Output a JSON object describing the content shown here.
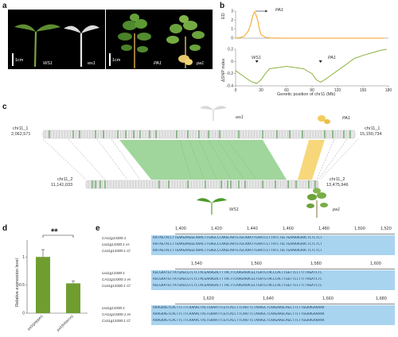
{
  "panels": {
    "a": {
      "letter": "a",
      "scale_label_left": "1cm",
      "scale_label_right": "1cm",
      "captions": [
        "WS1",
        "ws1",
        "PA1",
        "pa1"
      ]
    },
    "b": {
      "letter": "b",
      "top_ylabel": "ED",
      "bottom_ylabel": "ΔSNP index",
      "xlabel": "Genetic position of chr11 (Mb)",
      "top_marker_label": "PA1",
      "bottom_marker_left": "WS1",
      "bottom_marker_right": "PA1",
      "x_ticks": [
        "0",
        "30",
        "60",
        "90",
        "120",
        "150",
        "180"
      ],
      "top_y_ticks": [
        "0",
        "1",
        "2",
        "3"
      ],
      "bottom_y_ticks": [
        "-0.4",
        "-0.2",
        "0",
        "0.2"
      ]
    },
    "c": {
      "letter": "c",
      "chr_top_name": "chr11_1",
      "chr_top_start": "2,062,571",
      "chr_top_end_name": "chr11_1",
      "chr_top_end": "15,150,734",
      "chr_bottom_name": "chr11_2",
      "chr_bottom_start": "11,141,033",
      "chr_bottom_end_name": "chr11_2",
      "chr_bottom_end": "13,475,946",
      "label_ws1_top": "ws1",
      "label_pa1_top": "PA1",
      "label_ws1_bottom": "WS1",
      "label_pa1_bottom": "pa1"
    },
    "d": {
      "letter": "d",
      "ylabel": "Relative expression level",
      "significance": "**"
    },
    "e": {
      "letter": "e",
      "block1": {
        "ticks": [
          "1,400",
          "1,420",
          "1,440",
          "1,460",
          "1,480",
          "1,500",
          "1,520"
        ],
        "labels": [
          "CA11g13300.1",
          "ca11g13300.1 vs",
          "Ca11g13300.1 Cl"
        ],
        "rows": [
          "AATAGTACCTTGAAGAAGGCAAACTTGAGCCCAAGCAATGTGCAAATTGAATCCTTATCTGCTGAAAAGAACTCTCTCT",
          "AATAGTACCTTGAAGAAGGCAAACTTGAGCCCAAGCAATGTGCAAATTGAATCCTTATCTGCTGAAAAGAACTCTCTCT",
          "AATAGTACCTTGAAGAAGGCAAACTTGAGCCCAAGCAATGTGCAAATTGAATCCTTATCTGCTGAAAAGAACTCTCTCT"
        ]
      },
      "block2": {
        "ticks": [
          "1,540",
          "1,560",
          "1,580",
          "1,600"
        ],
        "labels": [
          "ca11g13300.1",
          "CA11g13300.1 vs",
          "Ca11g13300.1 Cl"
        ],
        "rows": [
          "AGCGAATGTTATGAGCGTCTCTACGAAAGACTTTACTTCAAGAAACGCTGATGTACCCACTTGGTTCCTTTTAGATCTC",
          "AGCGAATGTTATGAGCGTCTCTACGAAAGACTTTACTTCAAGAAACGCTGATGTACCCACTTGGTTCCTTTTAGATCTC",
          "AGCGAATGTTATGAGCGTCTCTACGAAAGACTTTACTTCAAGAAACGCTGATGTACCCACTTGGTTCCTTTTAGATCTC"
        ]
      },
      "block3": {
        "ticks": [
          "1,620",
          "1,640",
          "1,660",
          "1,680"
        ],
        "labels": [
          "ca11g13300.1",
          "CA11g13300.1 vs",
          "Ca11g13300.1 Cl"
        ],
        "rows": [
          "AAAGAAGTCACTTCTTCAAAACTACTGAAATTCGTCACCTTCAATTCTAAAGCTCAAGAAGCAGCTTCTTGGAAGAAAAA",
          "AAAGAAGTCACTTCTTCAAAACTACTGAAATTCGTCACCTTCAATTCTAAAGCTCAAGAAGCAGCTTCTTGGAAGAAAAA",
          "AAAGAAGTCACTTCTTCAAAACTACTGAAATTCGTCACCTTCAATTCTAAAGCTCAAGAAGCAGCTTCTTGGAAGAAAAA"
        ]
      }
    }
  },
  "chart_data": [
    {
      "type": "line",
      "xlabel": "Genetic position of chr11 (Mb)",
      "ylabel": "ED",
      "xlim": [
        0,
        180
      ],
      "x": [
        0,
        5,
        10,
        15,
        18,
        20,
        22,
        24,
        26,
        28,
        30,
        35,
        40,
        60,
        90,
        120,
        150,
        175
      ],
      "y": [
        0.0,
        0.05,
        0.2,
        0.8,
        1.6,
        2.4,
        2.9,
        2.6,
        2.0,
        1.0,
        0.4,
        0.1,
        0.02,
        0.0,
        0.0,
        0.0,
        0.0,
        0.0
      ],
      "colors": [
        "#f3a21d"
      ]
    },
    {
      "type": "line",
      "xlabel": "Genetic position of chr11 (Mb)",
      "ylabel": "ΔSNP index",
      "xlim": [
        0,
        180
      ],
      "x": [
        0,
        5,
        10,
        15,
        20,
        25,
        30,
        35,
        40,
        50,
        60,
        70,
        80,
        90,
        95,
        100,
        105,
        110,
        120,
        130,
        140,
        150,
        160,
        170,
        178
      ],
      "y": [
        -0.15,
        -0.2,
        -0.25,
        -0.3,
        -0.34,
        -0.36,
        -0.3,
        -0.2,
        -0.12,
        -0.1,
        -0.08,
        -0.1,
        -0.12,
        -0.2,
        -0.3,
        -0.34,
        -0.3,
        -0.25,
        -0.15,
        -0.05,
        0.05,
        0.1,
        0.14,
        0.18,
        0.2
      ],
      "colors": [
        "#8db340"
      ]
    },
    {
      "type": "bar",
      "categories": [
        "pa1(pepper)",
        "pa1(tobacco)"
      ],
      "values": [
        1.0,
        0.53
      ],
      "errors": [
        0.13,
        0.04
      ],
      "ylim": [
        0,
        1.3
      ],
      "colors": [
        "#6f9e2f"
      ]
    }
  ]
}
